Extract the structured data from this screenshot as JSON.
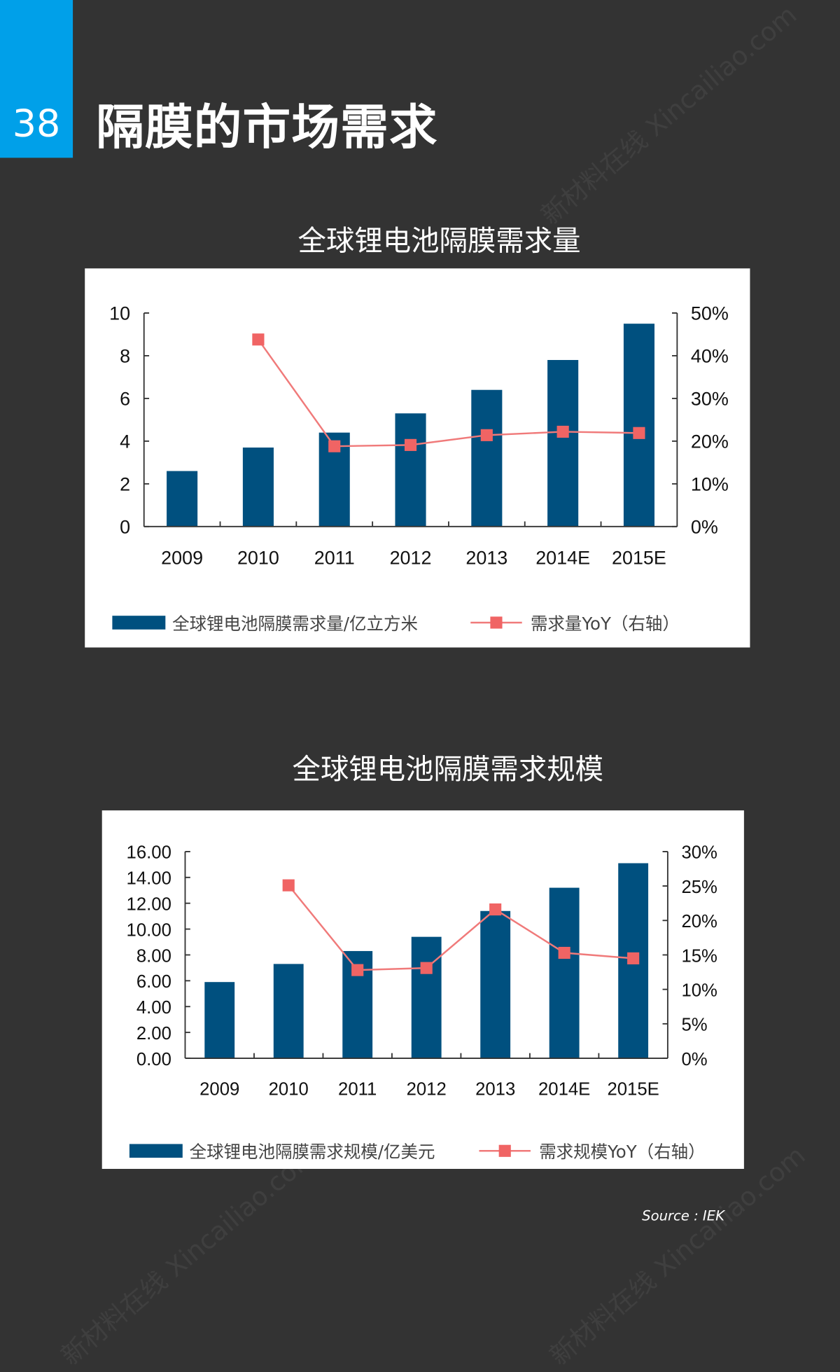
{
  "page": {
    "number": "38",
    "title": "隔膜的市场需求",
    "source": "Source : IEK",
    "watermark": "新材料在线 Xincailiao.com"
  },
  "colors": {
    "accent": "#00a0e9",
    "background": "#333333",
    "bar": "#00507f",
    "line": "#f07a7a",
    "marker": "#f06464"
  },
  "chart_data": [
    {
      "type": "bar",
      "title": "全球锂电池隔膜需求量",
      "categories": [
        "2009",
        "2010",
        "2011",
        "2012",
        "2013",
        "2014E",
        "2015E"
      ],
      "series": [
        {
          "name": "全球锂电池隔膜需求量/亿立方米",
          "type": "bar",
          "axis": "left",
          "values": [
            2.6,
            3.7,
            4.4,
            5.3,
            6.4,
            7.8,
            9.5
          ]
        },
        {
          "name": "需求量YoY（右轴）",
          "type": "line",
          "axis": "right",
          "values": [
            null,
            0.438,
            0.188,
            0.191,
            0.214,
            0.222,
            0.219
          ]
        }
      ],
      "ylim": [
        0,
        10
      ],
      "yticks": [
        "0",
        "2",
        "4",
        "6",
        "8",
        "10"
      ],
      "yticks_values": [
        0,
        2,
        4,
        6,
        8,
        10
      ],
      "y2lim": [
        0,
        0.5
      ],
      "y2ticks": [
        "0%",
        "10%",
        "20%",
        "30%",
        "40%",
        "50%"
      ],
      "grid": false,
      "legend": "bottom"
    },
    {
      "type": "bar",
      "title": "全球锂电池隔膜需求规模",
      "categories": [
        "2009",
        "2010",
        "2011",
        "2012",
        "2013",
        "2014E",
        "2015E"
      ],
      "series": [
        {
          "name": "全球锂电池隔膜需求规模/亿美元",
          "type": "bar",
          "axis": "left",
          "values": [
            5.9,
            7.3,
            8.3,
            9.4,
            11.4,
            13.2,
            15.1
          ]
        },
        {
          "name": "需求规模YoY（右轴）",
          "type": "line",
          "axis": "right",
          "values": [
            null,
            0.251,
            0.128,
            0.131,
            0.216,
            0.153,
            0.145
          ]
        }
      ],
      "ylim": [
        0,
        16
      ],
      "yticks": [
        "0.00",
        "2.00",
        "4.00",
        "6.00",
        "8.00",
        "10.00",
        "12.00",
        "14.00",
        "16.00"
      ],
      "yticks_values": [
        0,
        2,
        4,
        6,
        8,
        10,
        12,
        14,
        16
      ],
      "y2lim": [
        0,
        0.3
      ],
      "y2ticks": [
        "0%",
        "5%",
        "10%",
        "15%",
        "20%",
        "25%",
        "30%"
      ],
      "grid": false,
      "legend": "bottom"
    }
  ]
}
